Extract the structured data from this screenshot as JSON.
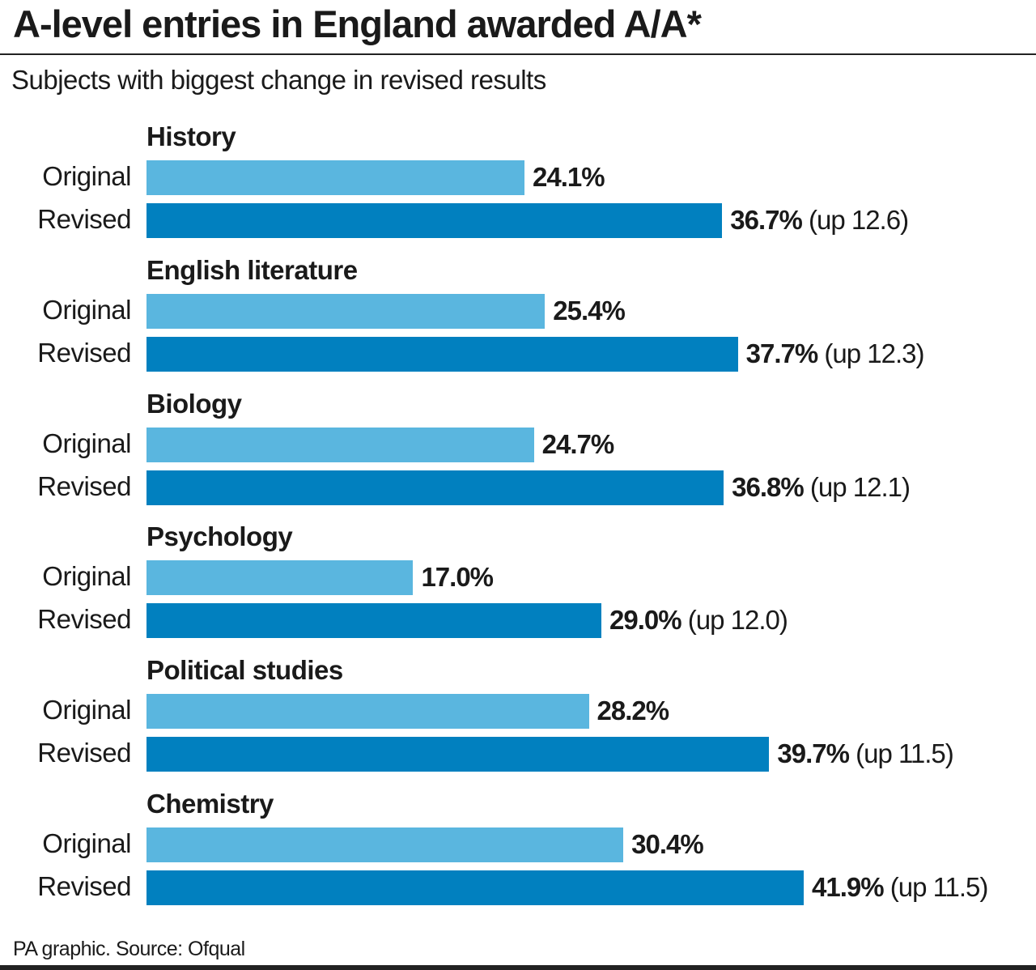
{
  "title": "A-level entries in England awarded A/A*",
  "subtitle": "Subjects with biggest change in revised results",
  "source": "PA graphic. Source: Ofqual",
  "chart_data": {
    "type": "bar",
    "orientation": "horizontal",
    "title": "A-level entries in England awarded A/A*",
    "subtitle": "Subjects with biggest change in revised results",
    "unit": "%",
    "categories": [
      "History",
      "English literature",
      "Biology",
      "Psychology",
      "Political studies",
      "Chemistry"
    ],
    "row_labels": [
      "Original",
      "Revised"
    ],
    "series": [
      {
        "name": "Original",
        "color": "#5ab6df",
        "values": [
          24.1,
          25.4,
          24.7,
          17.0,
          28.2,
          30.4
        ],
        "labels": [
          "24.1%",
          "25.4%",
          "24.7%",
          "17.0%",
          "28.2%",
          "30.4%"
        ]
      },
      {
        "name": "Revised",
        "color": "#0180bf",
        "values": [
          36.7,
          37.7,
          36.8,
          29.0,
          39.7,
          41.9
        ],
        "labels": [
          "36.7%",
          "37.7%",
          "36.8%",
          "29.0%",
          "39.7%",
          "41.9%"
        ],
        "change_labels": [
          "(up 12.6)",
          "(up 12.3)",
          "(up 12.1)",
          "(up 12.0)",
          "(up 11.5)",
          "(up 11.5)"
        ]
      }
    ],
    "grid": false,
    "legend": "none"
  }
}
